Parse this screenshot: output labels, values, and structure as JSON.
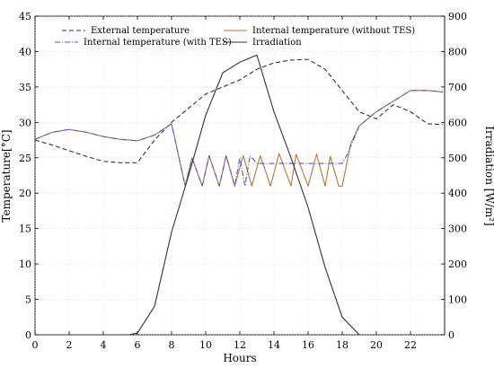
{
  "chart_data": {
    "type": "line",
    "xlabel": "Hours",
    "ylabel_left": "Temperature[°C]",
    "ylabel_right": "Irradiation [W/m²]",
    "xlim": [
      0,
      24
    ],
    "ylim_left": [
      0,
      45
    ],
    "ylim_right": [
      0,
      900
    ],
    "xticks": [
      "0",
      "2",
      "4",
      "6",
      "8",
      "10",
      "12",
      "14",
      "16",
      "18",
      "20",
      "22"
    ],
    "yticks_left": [
      "0",
      "5",
      "10",
      "15",
      "20",
      "25",
      "30",
      "35",
      "40",
      "45"
    ],
    "yticks_right": [
      "0",
      "100",
      "200",
      "300",
      "400",
      "500",
      "600",
      "700",
      "800",
      "900"
    ],
    "grid": true,
    "legend_position": "top",
    "series": [
      {
        "name": "External temperature",
        "axis": "left",
        "color": "#333333",
        "dash": "dashed",
        "x": [
          0,
          1,
          2,
          3,
          4,
          5,
          6,
          7,
          8,
          9,
          10,
          11,
          12,
          13,
          14,
          15,
          16,
          17,
          18,
          19,
          20,
          21,
          22,
          23,
          23.9
        ],
        "y": [
          27.5,
          26.8,
          26.0,
          25.2,
          24.5,
          24.3,
          24.3,
          27.5,
          30.0,
          32.0,
          34.0,
          35.0,
          36.0,
          37.5,
          38.4,
          38.8,
          38.9,
          37.5,
          34.5,
          31.5,
          30.5,
          32.5,
          31.5,
          29.8,
          29.7
        ]
      },
      {
        "name": "Internal temperature (without TES)",
        "axis": "left",
        "color": "#b07840",
        "dash": "solid",
        "x": [
          0,
          1,
          2,
          3,
          4,
          5,
          6,
          7,
          8,
          8.8,
          9.2,
          9.8,
          10.2,
          10.8,
          11.2,
          11.7,
          12.2,
          12.7,
          13.2,
          13.8,
          14.3,
          15.0,
          15.3,
          16.0,
          16.5,
          17.0,
          17.3,
          17.8,
          18.0,
          18.5,
          19,
          20,
          21,
          22,
          23,
          23.9
        ],
        "y": [
          27.6,
          28.6,
          29.0,
          28.6,
          28.0,
          27.6,
          27.4,
          28.2,
          29.8,
          21.0,
          25.0,
          21.0,
          25.3,
          21.0,
          25.3,
          21.0,
          25.3,
          21.0,
          25.3,
          21.0,
          25.6,
          21.0,
          25.5,
          21.0,
          25.5,
          21.0,
          25.2,
          21.0,
          21.0,
          27.0,
          29.5,
          31.5,
          33.0,
          34.5,
          34.5,
          34.3
        ]
      },
      {
        "name": "Internal temperature (with TES)",
        "axis": "left",
        "color": "#5555cc",
        "dash": "dashdot",
        "x": [
          0,
          1,
          2,
          3,
          4,
          5,
          6,
          7,
          8,
          8.8,
          9.2,
          9.8,
          10.2,
          10.8,
          11.2,
          11.7,
          12.0,
          12.3,
          12.6,
          13.0,
          14,
          15,
          16,
          17,
          18,
          18.3,
          19,
          20,
          21,
          22,
          23,
          23.9
        ],
        "y": [
          27.6,
          28.6,
          29.0,
          28.6,
          28.0,
          27.6,
          27.4,
          28.2,
          29.8,
          21.0,
          25.0,
          21.0,
          25.3,
          21.0,
          25.3,
          21.0,
          25.0,
          21.0,
          25.3,
          24.2,
          24.2,
          24.2,
          24.2,
          24.2,
          24.2,
          25.5,
          29.5,
          31.5,
          33.0,
          34.5,
          34.5,
          34.3
        ]
      },
      {
        "name": "Irradiation",
        "axis": "right",
        "color": "#333333",
        "dash": "solid",
        "x": [
          0,
          5.5,
          6.0,
          7.0,
          8.0,
          9.0,
          10.0,
          11.0,
          12.0,
          13.0,
          14.0,
          15.0,
          16.0,
          17.0,
          18.0,
          19.0
        ],
        "y": [
          0,
          0,
          5,
          80,
          290,
          450,
          620,
          740,
          770,
          790,
          630,
          500,
          360,
          190,
          50,
          0
        ]
      }
    ]
  }
}
